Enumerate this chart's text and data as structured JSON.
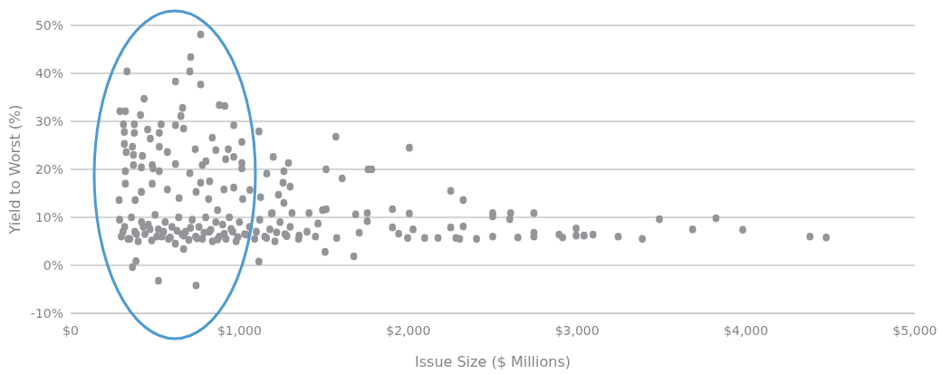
{
  "chart_data": {
    "type": "scatter",
    "xlabel": "Issue Size ($ Millions)",
    "ylabel": "Yield to Worst (%)",
    "xlim": [
      0,
      5000
    ],
    "xticks": [
      {
        "value": 0,
        "label": "$0"
      },
      {
        "value": 1000,
        "label": "$1,000"
      },
      {
        "value": 2000,
        "label": "$2,000"
      },
      {
        "value": 3000,
        "label": "$3,000"
      },
      {
        "value": 4000,
        "label": "$4,000"
      },
      {
        "value": 5000,
        "label": "$5,000"
      }
    ],
    "ylim": [
      -10,
      50
    ],
    "yticks": [
      {
        "value": -10,
        "label": "-10%"
      },
      {
        "value": 0,
        "label": "0%"
      },
      {
        "value": 10,
        "label": "10%"
      },
      {
        "value": 20,
        "label": "20%"
      },
      {
        "value": 30,
        "label": "30%"
      },
      {
        "value": 40,
        "label": "40%"
      },
      {
        "value": 50,
        "label": "50%"
      }
    ],
    "grid": "y",
    "marker": "circle",
    "series": [
      {
        "color": "#939598",
        "x": [
          770,
          711,
          706,
          770,
          334,
          621,
          435,
          881,
          913,
          292,
          324,
          663,
          653,
          414,
          313,
          377,
          536,
          621,
          669,
          966,
          318,
          377,
          456,
          525,
          1115,
          839,
          472,
          318,
          366,
          525,
          1014,
          860,
          934,
          573,
          738,
          329,
          372,
          425,
          918,
          966,
          1014,
          372,
          419,
          483,
          621,
          780,
          801,
          1014,
          1200,
          324,
          488,
          525,
          706,
          1162,
          324,
          483,
          770,
          823,
          573,
          908,
          966,
          743,
          419,
          1062,
          1125,
          642,
          287,
          382,
          817,
          1019,
          870,
          1189,
          387,
          366,
          520,
          743,
          669,
          1115,
          1571,
          2006,
          1290,
          1263,
          1513,
          1762,
          1783,
          1608,
          1258,
          1300,
          1231,
          1263,
          2251,
          2325,
          1194,
          1311,
          1412,
          1492,
          1513,
          1688,
          1757,
          1906,
          2006,
          2500,
          2500,
          2606,
          2601,
          2744,
          1465,
          1757,
          1906,
          1943,
          1996,
          2028,
          2097,
          2176,
          2251,
          2282,
          2304,
          2325,
          2404,
          2500,
          2649,
          2744,
          2744,
          2893,
          2914,
          2994,
          2994,
          3041,
          1507,
          1677,
          1576,
          1709,
          1353,
          3094,
          3243,
          3386,
          3487,
          3684,
          3822,
          3981,
          4379,
          4475,
          290,
          300,
          320,
          340,
          360,
          380,
          400,
          420,
          440,
          460,
          480,
          500,
          520,
          540,
          560,
          580,
          600,
          620,
          640,
          660,
          680,
          700,
          720,
          740,
          760,
          780,
          800,
          820,
          840,
          860,
          880,
          900,
          920,
          940,
          960,
          980,
          1000,
          1030,
          1060,
          1090,
          1120,
          1150,
          1180,
          1210,
          1240,
          1270,
          1300,
          1350,
          1400,
          1450,
          310,
          350,
          390,
          430,
          470,
          510,
          550,
          590,
          630,
          670,
          710,
          750,
          790,
          830,
          870,
          910,
          950,
          990,
          1040,
          1100,
          1160,
          1220,
          1280
        ],
        "values": [
          48.1,
          43.4,
          40.4,
          37.7,
          40.4,
          38.3,
          34.7,
          33.4,
          33.2,
          32.1,
          32.1,
          32.8,
          31.1,
          31.3,
          29.4,
          29.4,
          29.4,
          29.2,
          28.5,
          29.2,
          27.8,
          27.6,
          28.3,
          27.6,
          27.9,
          26.6,
          26.4,
          25.3,
          24.7,
          24.7,
          25.7,
          24.0,
          24.2,
          23.6,
          24.2,
          23.6,
          23.0,
          22.8,
          22.1,
          22.6,
          21.3,
          20.9,
          20.4,
          20.9,
          21.1,
          20.9,
          21.7,
          20.2,
          22.6,
          19.6,
          20.2,
          19.6,
          19.2,
          19.1,
          17.0,
          17.0,
          17.2,
          17.5,
          15.8,
          15.8,
          16.2,
          15.3,
          15.3,
          15.7,
          14.2,
          14.0,
          13.6,
          13.6,
          13.8,
          13.8,
          11.5,
          10.8,
          0.9,
          -0.4,
          -3.2,
          -4.2,
          3.4,
          0.8,
          26.8,
          24.5,
          21.3,
          19.6,
          20.0,
          20.0,
          20.0,
          18.1,
          17.2,
          16.4,
          14.7,
          13.0,
          15.5,
          13.6,
          10.9,
          10.9,
          10.9,
          11.5,
          11.7,
          10.6,
          10.9,
          11.7,
          10.8,
          10.9,
          10.2,
          10.9,
          9.6,
          10.9,
          8.7,
          9.2,
          7.9,
          6.6,
          5.7,
          7.5,
          5.7,
          5.7,
          7.9,
          5.7,
          5.5,
          8.1,
          5.5,
          6.0,
          5.8,
          6.8,
          6.0,
          6.4,
          5.8,
          7.7,
          6.2,
          6.2,
          2.8,
          1.9,
          5.7,
          6.8,
          6.2,
          6.4,
          6.0,
          5.5,
          9.6,
          7.5,
          9.8,
          7.4,
          6.0,
          5.8,
          9.5,
          6.0,
          8.0,
          5.5,
          10.0,
          7.0,
          5.0,
          9.0,
          6.5,
          8.5,
          5.2,
          10.5,
          7.5,
          6.0,
          9.0,
          5.5,
          8.0,
          4.5,
          10.0,
          6.5,
          7.0,
          5.3,
          9.5,
          6.0,
          8.0,
          5.5,
          10.0,
          7.0,
          5.0,
          9.0,
          6.0,
          8.5,
          5.5,
          10.0,
          7.0,
          5.0,
          9.0,
          6.5,
          8.0,
          5.5,
          9.5,
          6.0,
          7.5,
          5.0,
          9.0,
          6.5,
          8.0,
          5.5,
          7.0,
          6.0,
          7.0,
          5.5,
          6.5,
          8.0,
          7.5,
          6.0,
          7.0,
          5.8,
          7.2,
          6.2,
          7.8,
          5.6,
          6.8,
          7.4,
          5.4,
          6.6,
          7.6,
          5.9,
          6.4,
          7.0,
          5.7,
          6.9,
          6.1
        ]
      }
    ]
  }
}
